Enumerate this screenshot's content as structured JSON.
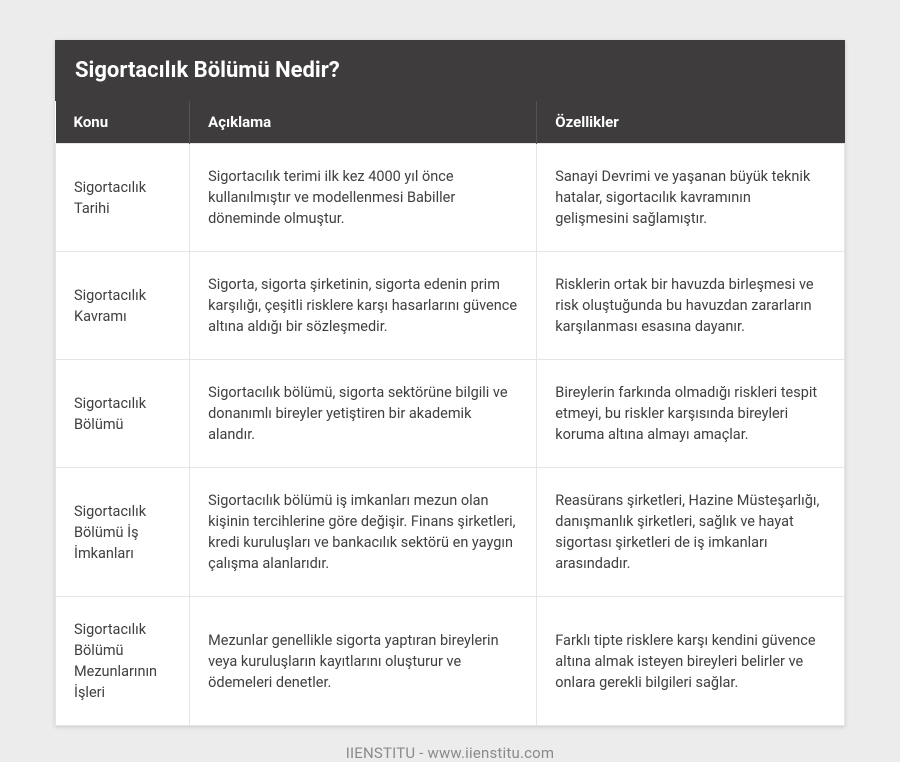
{
  "title": "Sigortacılık Bölümü Nedir?",
  "columns": [
    "Konu",
    "Açıklama",
    "Özellikler"
  ],
  "rows": [
    {
      "topic": "Sigortacılık Tarihi",
      "desc": "Sigortacılık terimi ilk kez 4000 yıl önce kullanılmıştır ve modellenmesi Babiller döneminde olmuştur.",
      "feat": "Sanayi Devrimi ve yaşanan büyük teknik hatalar, sigortacılık kavramının gelişmesini sağlamıştır."
    },
    {
      "topic": "Sigortacılık Kavramı",
      "desc": "Sigorta, sigorta şirketinin, sigorta edenin prim karşılığı, çeşitli risklere karşı hasarlarını güvence altına aldığı bir sözleşmedir.",
      "feat": "Risklerin ortak bir havuzda birleşmesi ve risk oluştuğunda bu havuzdan zararların karşılanması esasına dayanır."
    },
    {
      "topic": "Sigortacılık Bölümü",
      "desc": "Sigortacılık bölümü, sigorta sektörüne bilgili ve donanımlı bireyler yetiştiren bir akademik alandır.",
      "feat": "Bireylerin farkında olmadığı riskleri tespit etmeyi, bu riskler karşısında bireyleri koruma altına almayı amaçlar."
    },
    {
      "topic": "Sigortacılık Bölümü İş İmkanları",
      "desc": "Sigortacılık bölümü iş imkanları mezun olan kişinin tercihlerine göre değişir. Finans şirketleri, kredi kuruluşları ve bankacılık sektörü en yaygın çalışma alanlarıdır.",
      "feat": "Reasürans şirketleri, Hazine Müsteşarlığı, danışmanlık şirketleri, sağlık ve hayat sigortası şirketleri de iş imkanları arasındadır."
    },
    {
      "topic": "Sigortacılık Bölümü Mezunlarının İşleri",
      "desc": "Mezunlar genellikle sigorta yaptıran bireylerin veya kuruluşların kayıtlarını oluşturur ve ödemeleri denetler.",
      "feat": "Farklı tipte risklere karşı kendini güvence altına almak isteyen bireyleri belirler ve onlara gerekli bilgileri sağlar."
    }
  ],
  "footer": "IIENSTITU - www.iienstitu.com",
  "colors": {
    "page_bg": "#ececec",
    "header_bg": "#3e3c3d",
    "header_text": "#ffffff",
    "cell_border": "#e5e5e5",
    "body_text": "#404040",
    "footer_text": "#8a8a8a"
  }
}
